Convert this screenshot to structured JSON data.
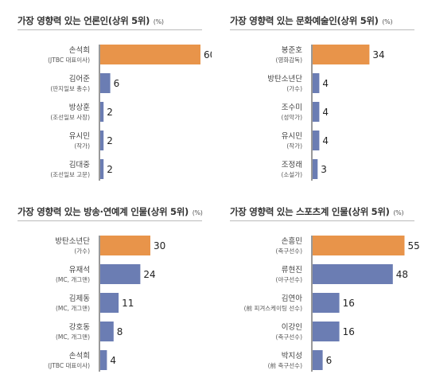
{
  "colors": {
    "highlight": "#E8944A",
    "bar": "#6B7DB3",
    "axis": "#333333"
  },
  "chart_data": [
    {
      "type": "bar",
      "orientation": "horizontal",
      "title": "가장 영향력 있는 언론인(상위 5위)",
      "unit": "(%)",
      "categories": [
        {
          "name": "손석희",
          "sub": "(JTBC 대표이사)"
        },
        {
          "name": "김어준",
          "sub": "(딴지일보 총수)"
        },
        {
          "name": "방상훈",
          "sub": "(조선일보 사장)"
        },
        {
          "name": "유시민",
          "sub": "(작가)"
        },
        {
          "name": "김대중",
          "sub": "(조선일보 고문)"
        }
      ],
      "values": [
        60,
        6,
        2,
        2,
        2
      ],
      "highlight_index": 0,
      "xlim": [
        0,
        65
      ]
    },
    {
      "type": "bar",
      "orientation": "horizontal",
      "title": "가장 영향력 있는 문화예술인(상위 5위)",
      "unit": "(%)",
      "categories": [
        {
          "name": "봉준호",
          "sub": "(영화감독)"
        },
        {
          "name": "방탄소년단",
          "sub": "(가수)"
        },
        {
          "name": "조수미",
          "sub": "(성악가)"
        },
        {
          "name": "유시민",
          "sub": "(작가)"
        },
        {
          "name": "조정래",
          "sub": "(소설가)"
        }
      ],
      "values": [
        34,
        4,
        4,
        4,
        3
      ],
      "highlight_index": 0,
      "xlim": [
        0,
        65
      ]
    },
    {
      "type": "bar",
      "orientation": "horizontal",
      "title": "가장 영향력 있는 방송·연예계 인물(상위 5위)",
      "unit": "(%)",
      "categories": [
        {
          "name": "방탄소년단",
          "sub": "(가수)"
        },
        {
          "name": "유재석",
          "sub": "(MC, 개그맨)"
        },
        {
          "name": "김제동",
          "sub": "(MC, 개그맨)"
        },
        {
          "name": "강호동",
          "sub": "(MC, 개그맨)"
        },
        {
          "name": "손석희",
          "sub": "(JTBC 대표이사)"
        }
      ],
      "values": [
        30,
        24,
        11,
        8,
        4
      ],
      "highlight_index": 0,
      "xlim": [
        0,
        65
      ]
    },
    {
      "type": "bar",
      "orientation": "horizontal",
      "title": "가장 영향력 있는 스포츠계 인물(상위 5위)",
      "unit": "(%)",
      "categories": [
        {
          "name": "손흥민",
          "sub": "(축구선수)"
        },
        {
          "name": "류현진",
          "sub": "(야구선수)"
        },
        {
          "name": "김연아",
          "sub": "(前 피겨스케이팅 선수)"
        },
        {
          "name": "이강인",
          "sub": "(축구선수)"
        },
        {
          "name": "박지성",
          "sub": "(前 축구선수)"
        }
      ],
      "values": [
        55,
        48,
        16,
        16,
        6
      ],
      "highlight_index": 0,
      "xlim": [
        0,
        65
      ]
    }
  ]
}
